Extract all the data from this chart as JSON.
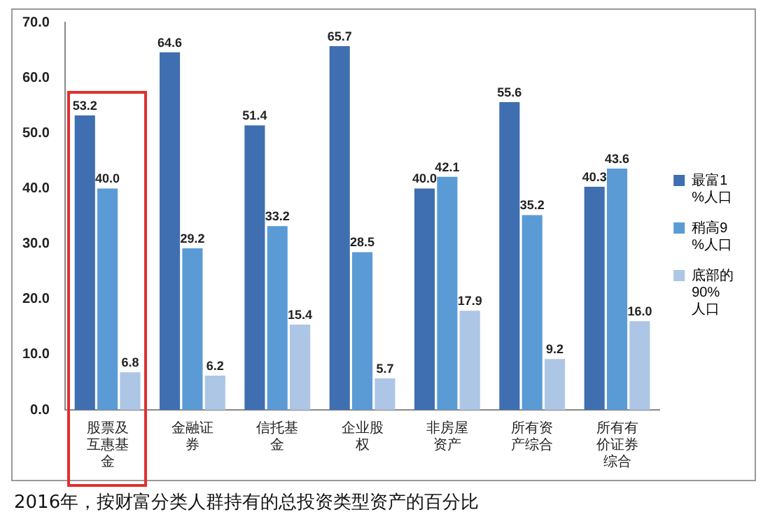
{
  "chart_data": {
    "type": "bar",
    "categories": [
      "股票及互惠基金",
      "金融证券",
      "信托基金",
      "企业股权",
      "非房屋资产",
      "所有资产综合",
      "所有有价证券综合"
    ],
    "series": [
      {
        "name": "最富1%人口",
        "color": "#3f6fb0",
        "values": [
          53.2,
          64.6,
          51.4,
          65.7,
          40.0,
          55.6,
          40.3
        ],
        "value_labels": [
          "53.2",
          "64.6",
          "51.4",
          "65.7",
          "40.0",
          "55.6",
          "40.3"
        ]
      },
      {
        "name": "稍高9%人口",
        "color": "#5b9bd5",
        "values": [
          40.0,
          29.2,
          33.2,
          28.5,
          42.1,
          35.2,
          43.6
        ],
        "value_labels": [
          "40.0",
          "29.2",
          "33.2",
          "28.5",
          "42.1",
          "35.2",
          "43.6"
        ]
      },
      {
        "name": "底部的90%人口",
        "color": "#adc6e6",
        "values": [
          6.8,
          6.2,
          15.4,
          5.7,
          17.9,
          9.2,
          16.0
        ],
        "value_labels": [
          "6.8",
          "6.2",
          "15.4",
          "5.7",
          "17.9",
          "9.2",
          "16.0"
        ]
      }
    ],
    "ylim": [
      0,
      70
    ],
    "yticks": [
      {
        "value": 0,
        "label": "0.0"
      },
      {
        "value": 10,
        "label": "10.0"
      },
      {
        "value": 20,
        "label": "20.0"
      },
      {
        "value": 30,
        "label": "30.0"
      },
      {
        "value": 40,
        "label": "40.0"
      },
      {
        "value": 50,
        "label": "50.0"
      },
      {
        "value": 60,
        "label": "60.0"
      },
      {
        "value": 70,
        "label": "70.0"
      }
    ],
    "grid": false,
    "legend": "right",
    "annotations": [
      "2016年，按财富分类人群持有的总投资类型资产的百分比"
    ]
  }
}
